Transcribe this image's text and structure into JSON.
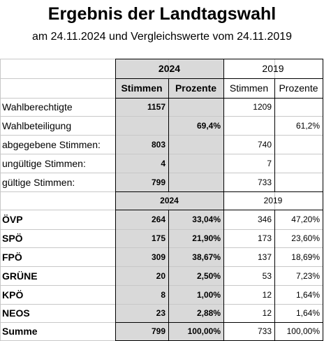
{
  "header": {
    "title": "Ergebnis der Landtagswahl",
    "subtitle": "am 24.11.2024 und Vergleichswerte vom 24.11.2019"
  },
  "colors": {
    "shade": "#d9d9d9"
  },
  "top_table": {
    "year_2024": "2024",
    "year_2019": "2019",
    "col_votes": "Stimmen",
    "col_percent": "Prozente",
    "rows": [
      {
        "label": "Wahlberechtigte",
        "v24": "1157",
        "p24": "",
        "v19": "1209",
        "p19": ""
      },
      {
        "label": "Wahlbeteiligung",
        "v24": "",
        "p24": "69,4%",
        "v19": "",
        "p19": "61,2%"
      },
      {
        "label": "abgegebene Stimmen:",
        "v24": "803",
        "p24": "",
        "v19": "740",
        "p19": ""
      },
      {
        "label": "ungültige Stimmen:",
        "v24": "4",
        "p24": "",
        "v19": "7",
        "p19": ""
      },
      {
        "label": "gültige Stimmen:",
        "v24": "799",
        "p24": "",
        "v19": "733",
        "p19": ""
      }
    ]
  },
  "party_table": {
    "year_2024": "2024",
    "year_2019": "2019",
    "rows": [
      {
        "label": "ÖVP",
        "v24": "264",
        "p24": "33,04%",
        "v19": "346",
        "p19": "47,20%"
      },
      {
        "label": "SPÖ",
        "v24": "175",
        "p24": "21,90%",
        "v19": "173",
        "p19": "23,60%"
      },
      {
        "label": "FPÖ",
        "v24": "309",
        "p24": "38,67%",
        "v19": "137",
        "p19": "18,69%"
      },
      {
        "label": "GRÜNE",
        "v24": "20",
        "p24": "2,50%",
        "v19": "53",
        "p19": "7,23%"
      },
      {
        "label": "KPÖ",
        "v24": "8",
        "p24": "1,00%",
        "v19": "12",
        "p19": "1,64%"
      },
      {
        "label": "NEOS",
        "v24": "23",
        "p24": "2,88%",
        "v19": "12",
        "p19": "1,64%"
      }
    ],
    "total": {
      "label": "Summe",
      "v24": "799",
      "p24": "100,00%",
      "v19": "733",
      "p19": "100,00%"
    }
  }
}
